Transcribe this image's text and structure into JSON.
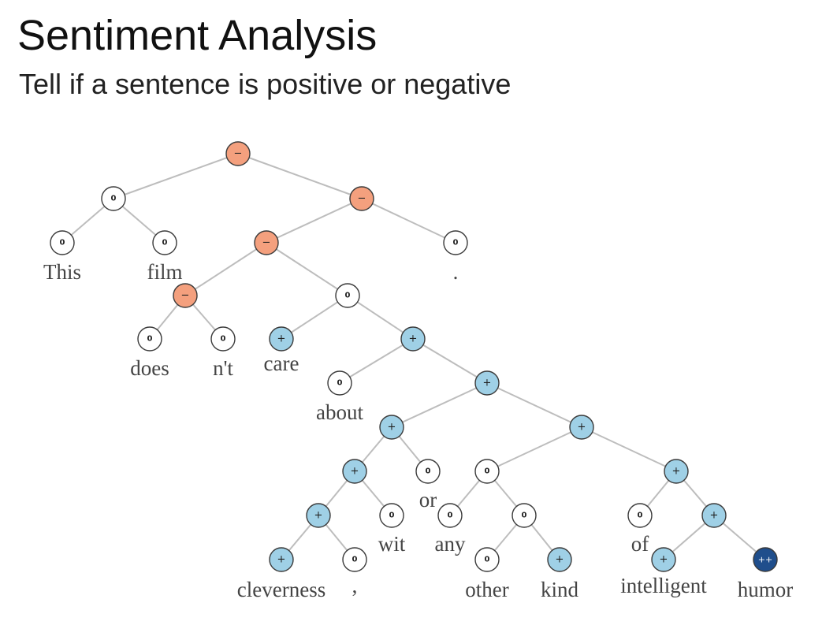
{
  "header": {
    "title": "Sentiment Analysis",
    "subtitle": "Tell if a sentence is positive or negative"
  },
  "colors": {
    "neutral": "#ffffff",
    "negative": "#f4a07e",
    "positive": "#9fd0e6",
    "very_positive": "#1f4e8c",
    "edge": "#bdbdbd"
  },
  "words": [
    "This",
    "film",
    ".",
    "does",
    "n't",
    "care",
    "about",
    "cleverness",
    ",",
    "wit",
    "or",
    "any",
    "other",
    "kind",
    "of",
    "intelligent",
    "humor"
  ],
  "tree": [
    {
      "id": "n1",
      "sign": "−",
      "sentiment": "negative",
      "parent": null
    },
    {
      "id": "n2",
      "sign": "0",
      "sentiment": "neutral",
      "parent": "n1"
    },
    {
      "id": "n3",
      "sign": "−",
      "sentiment": "negative",
      "parent": "n1"
    },
    {
      "id": "n4",
      "sign": "0",
      "sentiment": "neutral",
      "parent": "n2",
      "word": 0
    },
    {
      "id": "n5",
      "sign": "0",
      "sentiment": "neutral",
      "parent": "n2",
      "word": 1
    },
    {
      "id": "n6",
      "sign": "−",
      "sentiment": "negative",
      "parent": "n3"
    },
    {
      "id": "n7",
      "sign": "0",
      "sentiment": "neutral",
      "parent": "n3",
      "word": 2
    },
    {
      "id": "n8",
      "sign": "−",
      "sentiment": "negative",
      "parent": "n6"
    },
    {
      "id": "n9",
      "sign": "0",
      "sentiment": "neutral",
      "parent": "n6"
    },
    {
      "id": "n10",
      "sign": "0",
      "sentiment": "neutral",
      "parent": "n8",
      "word": 3
    },
    {
      "id": "n11",
      "sign": "0",
      "sentiment": "neutral",
      "parent": "n8",
      "word": 4
    },
    {
      "id": "n12",
      "sign": "+",
      "sentiment": "positive",
      "parent": "n9",
      "word": 5
    },
    {
      "id": "n13",
      "sign": "+",
      "sentiment": "positive",
      "parent": "n9"
    },
    {
      "id": "n14",
      "sign": "0",
      "sentiment": "neutral",
      "parent": "n13",
      "word": 6
    },
    {
      "id": "n15",
      "sign": "+",
      "sentiment": "positive",
      "parent": "n13"
    },
    {
      "id": "n16",
      "sign": "+",
      "sentiment": "positive",
      "parent": "n15"
    },
    {
      "id": "n17",
      "sign": "+",
      "sentiment": "positive",
      "parent": "n15"
    },
    {
      "id": "n18",
      "sign": "+",
      "sentiment": "positive",
      "parent": "n16"
    },
    {
      "id": "n19",
      "sign": "0",
      "sentiment": "neutral",
      "parent": "n16",
      "word": 10
    },
    {
      "id": "n20",
      "sign": "+",
      "sentiment": "positive",
      "parent": "n18"
    },
    {
      "id": "n21",
      "sign": "0",
      "sentiment": "neutral",
      "parent": "n18",
      "word": 9
    },
    {
      "id": "n22",
      "sign": "+",
      "sentiment": "positive",
      "parent": "n20",
      "word": 7
    },
    {
      "id": "n23",
      "sign": "0",
      "sentiment": "neutral",
      "parent": "n20",
      "word": 8
    },
    {
      "id": "n24",
      "sign": "0",
      "sentiment": "neutral",
      "parent": "n17"
    },
    {
      "id": "n25",
      "sign": "+",
      "sentiment": "positive",
      "parent": "n17"
    },
    {
      "id": "n26",
      "sign": "0",
      "sentiment": "neutral",
      "parent": "n24",
      "word": 11
    },
    {
      "id": "n27",
      "sign": "0",
      "sentiment": "neutral",
      "parent": "n24"
    },
    {
      "id": "n28",
      "sign": "0",
      "sentiment": "neutral",
      "parent": "n27",
      "word": 12
    },
    {
      "id": "n29",
      "sign": "+",
      "sentiment": "positive",
      "parent": "n27",
      "word": 13
    },
    {
      "id": "n30",
      "sign": "0",
      "sentiment": "neutral",
      "parent": "n25",
      "word": 14
    },
    {
      "id": "n31",
      "sign": "+",
      "sentiment": "positive",
      "parent": "n25"
    },
    {
      "id": "n32",
      "sign": "+",
      "sentiment": "positive",
      "parent": "n31",
      "word": 15
    },
    {
      "id": "n33",
      "sign": "++",
      "sentiment": "very_positive",
      "parent": "n31",
      "word": 16
    }
  ]
}
